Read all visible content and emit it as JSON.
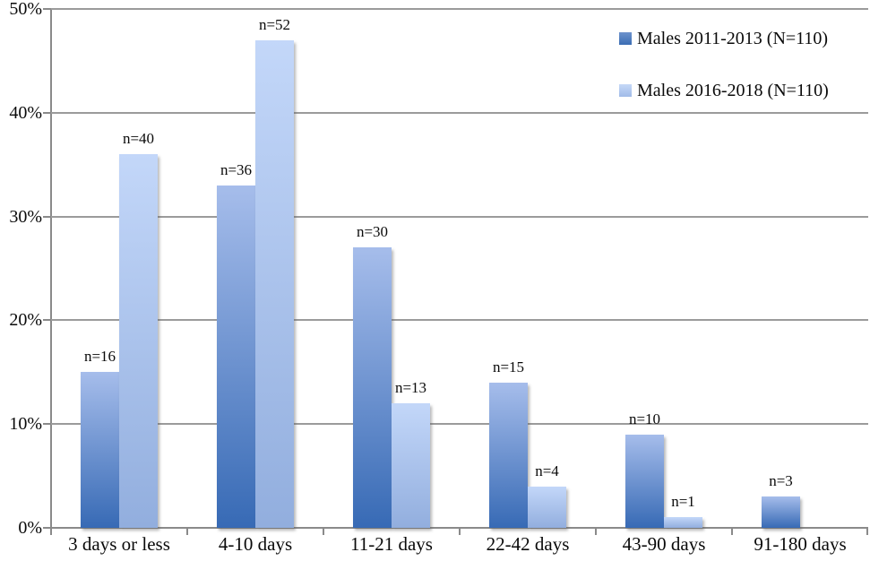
{
  "chart_data": {
    "type": "bar",
    "title": "",
    "categories": [
      "3 days or less",
      "4-10 days",
      "11-21 days",
      "22-42 days",
      "43-90 days",
      "91-180 days"
    ],
    "series": [
      {
        "name": "Males 2011-2013 (N=110)",
        "values": [
          15,
          33,
          27,
          14,
          9,
          3
        ],
        "count_labels": [
          "n=16",
          "n=36",
          "n=30",
          "n=15",
          "n=10",
          "n=3"
        ],
        "bar_color_top": "#A6BDEB",
        "bar_color_bottom": "#376AB5",
        "swatch_color_top": "#6D92CC",
        "swatch_color_bottom": "#3B6DB4"
      },
      {
        "name": "Males 2016-2018 (N=110)",
        "values": [
          36,
          47,
          12,
          4,
          1,
          0
        ],
        "count_labels": [
          "n=40",
          "n=52",
          "n=13",
          "n=4",
          "n=1",
          ""
        ],
        "bar_color_top": "#C3D7F9",
        "bar_color_bottom": "#92AEDE",
        "swatch_color_top": "#C5D8F7",
        "swatch_color_bottom": "#A0BBE8"
      }
    ],
    "y_axis": {
      "tick_labels": [
        "0%",
        "10%",
        "20%",
        "30%",
        "40%",
        "50%"
      ],
      "min": 0,
      "max": 50,
      "tick_step": 10,
      "unit": "%"
    },
    "grid": true,
    "legend_position": "top-right",
    "colors": {
      "gridline": "#9B9B9B",
      "axis": "#8A8A8A",
      "text": "#0A0A0A"
    }
  }
}
